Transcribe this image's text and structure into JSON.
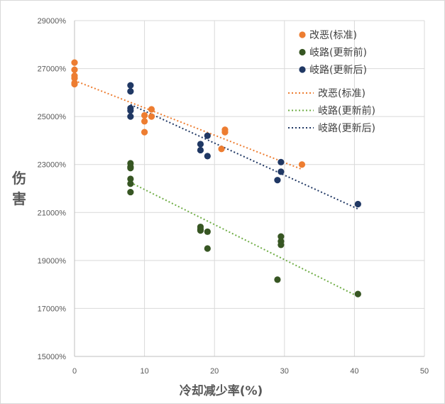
{
  "chart_data": {
    "type": "scatter",
    "title": "",
    "xlabel": "冷却减少率(%)",
    "ylabel": "伤害",
    "xlim": [
      0,
      50
    ],
    "ylim": [
      15000,
      29000
    ],
    "x_ticks": [
      0,
      10,
      20,
      30,
      40,
      50
    ],
    "y_ticks": [
      15000,
      17000,
      19000,
      21000,
      23000,
      25000,
      27000,
      29000
    ],
    "y_tick_format": "percent_no_scale",
    "grid": true,
    "legend_position": "top-right",
    "series": [
      {
        "name": "改恶(标准)",
        "color": "#ED7D31",
        "points": [
          [
            0,
            27250
          ],
          [
            0,
            26950
          ],
          [
            0,
            26700
          ],
          [
            0,
            26600
          ],
          [
            0,
            26400
          ],
          [
            0,
            26350
          ],
          [
            10,
            25050
          ],
          [
            10,
            24800
          ],
          [
            10,
            24350
          ],
          [
            11,
            25300
          ],
          [
            11,
            25000
          ],
          [
            21,
            23650
          ],
          [
            21.5,
            24450
          ],
          [
            21.5,
            24350
          ],
          [
            32.5,
            23000
          ]
        ],
        "trend_label": "改恶(标准)",
        "trend": [
          [
            0,
            26500
          ],
          [
            32.5,
            22800
          ]
        ]
      },
      {
        "name": "岐路(更新前)",
        "color": "#375623",
        "points": [
          [
            8,
            23050
          ],
          [
            8,
            22900
          ],
          [
            8,
            22850
          ],
          [
            8,
            22400
          ],
          [
            8,
            22200
          ],
          [
            8,
            21850
          ],
          [
            18,
            20400
          ],
          [
            18,
            20300
          ],
          [
            18,
            20250
          ],
          [
            19,
            20200
          ],
          [
            19,
            19500
          ],
          [
            29,
            18200
          ],
          [
            29.5,
            20000
          ],
          [
            29.5,
            19800
          ],
          [
            29.5,
            19650
          ],
          [
            40.5,
            17600
          ]
        ],
        "trend_label": "岐路(更新前)",
        "trend": [
          [
            8,
            22250
          ],
          [
            40.5,
            17500
          ]
        ]
      },
      {
        "name": "岐路(更新后)",
        "color": "#203864",
        "points": [
          [
            8,
            26300
          ],
          [
            8,
            26050
          ],
          [
            8,
            25350
          ],
          [
            8,
            25250
          ],
          [
            8,
            25000
          ],
          [
            18,
            23850
          ],
          [
            18,
            23600
          ],
          [
            19,
            24200
          ],
          [
            19,
            23350
          ],
          [
            29,
            22350
          ],
          [
            29.5,
            23100
          ],
          [
            29.5,
            22700
          ],
          [
            40.5,
            21350
          ]
        ],
        "trend_label": "岐路(更新后)",
        "trend": [
          [
            8,
            25500
          ],
          [
            40.5,
            21150
          ]
        ]
      }
    ]
  }
}
